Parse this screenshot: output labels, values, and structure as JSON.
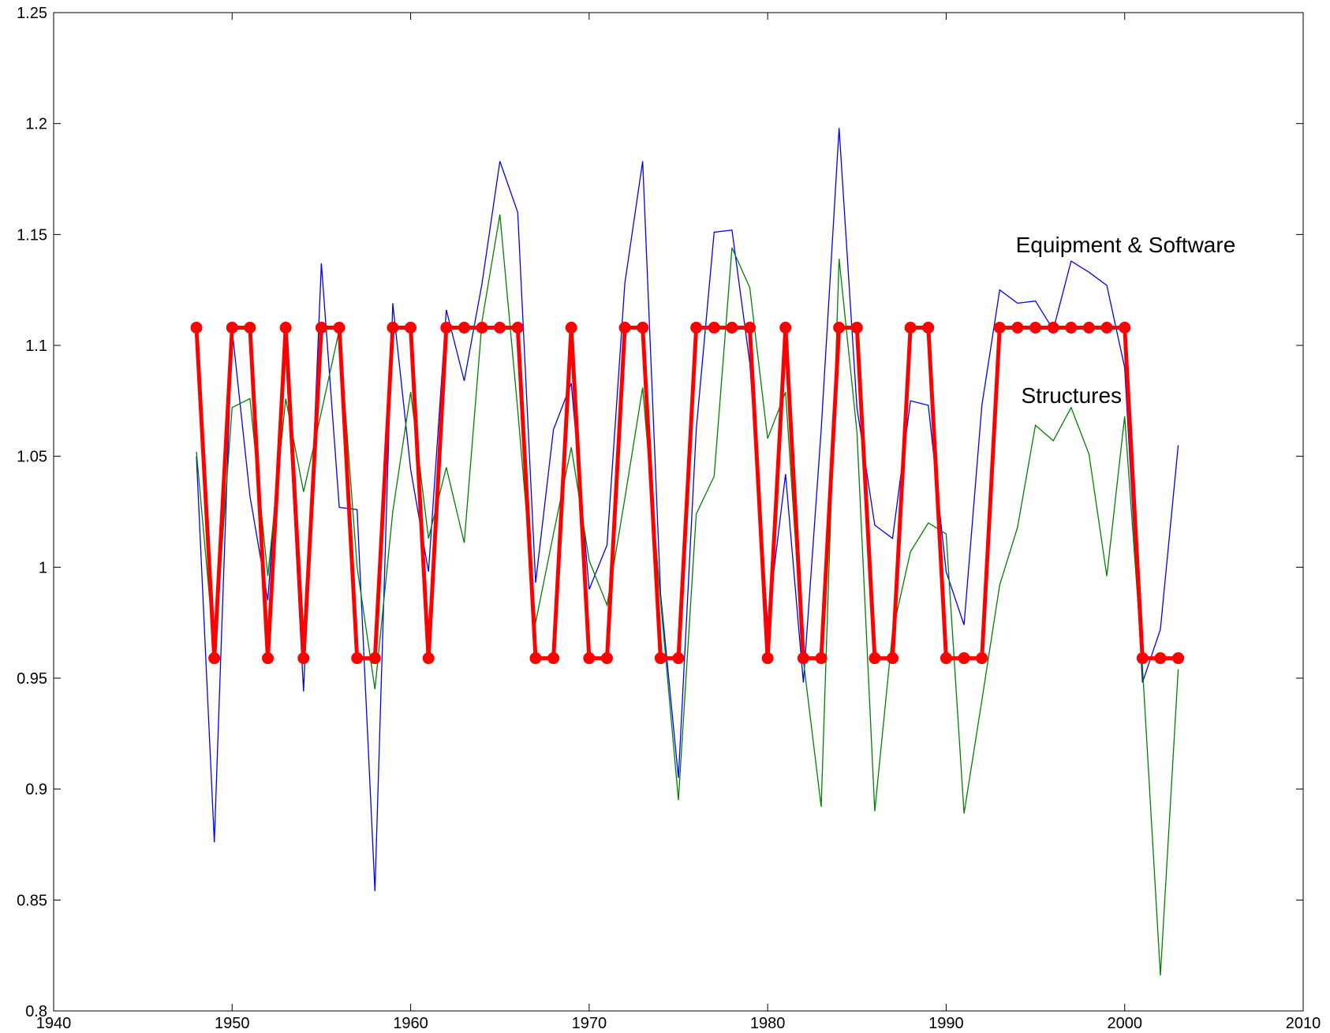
{
  "chart_data": {
    "type": "line",
    "xlim": [
      1940,
      2010
    ],
    "ylim": [
      0.8,
      1.25
    ],
    "xticks": [
      1940,
      1950,
      1960,
      1970,
      1980,
      1990,
      2000,
      2010
    ],
    "yticks": [
      0.8,
      0.85,
      0.9,
      0.95,
      1,
      1.05,
      1.1,
      1.15,
      1.2,
      1.25
    ],
    "xtick_labels": [
      "1940",
      "1950",
      "1960",
      "1970",
      "1980",
      "1990",
      "2000",
      "2010"
    ],
    "ytick_labels": [
      "0.8",
      "0.85",
      "0.9",
      "0.95",
      "1",
      "1.05",
      "1.1",
      "1.15",
      "1.2",
      "1.25"
    ],
    "grid": false,
    "annotations": [
      {
        "text": "Equipment & Software",
        "x": 1993.9,
        "y": 1.142
      },
      {
        "text": "Structures",
        "x": 1994.2,
        "y": 1.074
      }
    ],
    "x": [
      1948,
      1949,
      1950,
      1951,
      1952,
      1953,
      1954,
      1955,
      1956,
      1957,
      1958,
      1959,
      1960,
      1961,
      1962,
      1963,
      1964,
      1965,
      1966,
      1967,
      1968,
      1969,
      1970,
      1971,
      1972,
      1973,
      1974,
      1975,
      1976,
      1977,
      1978,
      1979,
      1980,
      1981,
      1982,
      1983,
      1984,
      1985,
      1986,
      1987,
      1988,
      1989,
      1990,
      1991,
      1992,
      1993,
      1994,
      1995,
      1996,
      1997,
      1998,
      1999,
      2000,
      2001,
      2002,
      2003
    ],
    "series": [
      {
        "name": "Equipment & Software",
        "color": "#0000ff",
        "marker": false,
        "values": [
          1.05,
          0.876,
          1.107,
          1.032,
          0.985,
          1.098,
          0.944,
          1.137,
          1.027,
          1.026,
          0.854,
          1.119,
          1.044,
          0.998,
          1.116,
          1.084,
          1.128,
          1.183,
          1.16,
          0.993,
          1.062,
          1.083,
          0.99,
          1.01,
          1.128,
          1.183,
          0.988,
          0.905,
          1.062,
          1.151,
          1.152,
          1.092,
          0.975,
          1.042,
          0.948,
          1.062,
          1.198,
          1.072,
          1.019,
          1.013,
          1.075,
          1.073,
          0.998,
          0.974,
          1.073,
          1.125,
          1.119,
          1.12,
          1.107,
          1.138,
          1.133,
          1.127,
          1.09,
          0.948,
          0.972,
          1.055
        ]
      },
      {
        "name": "Structures",
        "color": "#008000",
        "marker": false,
        "values": [
          1.052,
          0.962,
          1.072,
          1.076,
          0.996,
          1.076,
          1.034,
          1.07,
          1.107,
          1.0,
          0.945,
          1.025,
          1.079,
          1.013,
          1.045,
          1.011,
          1.111,
          1.159,
          1.071,
          0.975,
          1.015,
          1.054,
          1.003,
          0.983,
          1.031,
          1.081,
          0.985,
          0.895,
          1.024,
          1.041,
          1.144,
          1.126,
          1.058,
          1.079,
          0.958,
          0.892,
          1.139,
          1.061,
          0.89,
          0.971,
          1.007,
          1.02,
          1.015,
          0.889,
          0.94,
          0.992,
          1.018,
          1.064,
          1.057,
          1.072,
          1.051,
          0.996,
          1.068,
          0.955,
          0.816,
          0.954
        ]
      },
      {
        "name": "",
        "color": "#ff0000",
        "marker": true,
        "values": [
          1.108,
          0.959,
          1.108,
          1.108,
          0.959,
          1.108,
          0.959,
          1.108,
          1.108,
          0.959,
          0.959,
          1.108,
          1.108,
          0.959,
          1.108,
          1.108,
          1.108,
          1.108,
          1.108,
          0.959,
          0.959,
          1.108,
          0.959,
          0.959,
          1.108,
          1.108,
          0.959,
          0.959,
          1.108,
          1.108,
          1.108,
          1.108,
          0.959,
          1.108,
          0.959,
          0.959,
          1.108,
          1.108,
          0.959,
          0.959,
          1.108,
          1.108,
          0.959,
          0.959,
          0.959,
          1.108,
          1.108,
          1.108,
          1.108,
          1.108,
          1.108,
          1.108,
          1.108,
          0.959,
          0.959,
          0.959
        ]
      }
    ]
  }
}
